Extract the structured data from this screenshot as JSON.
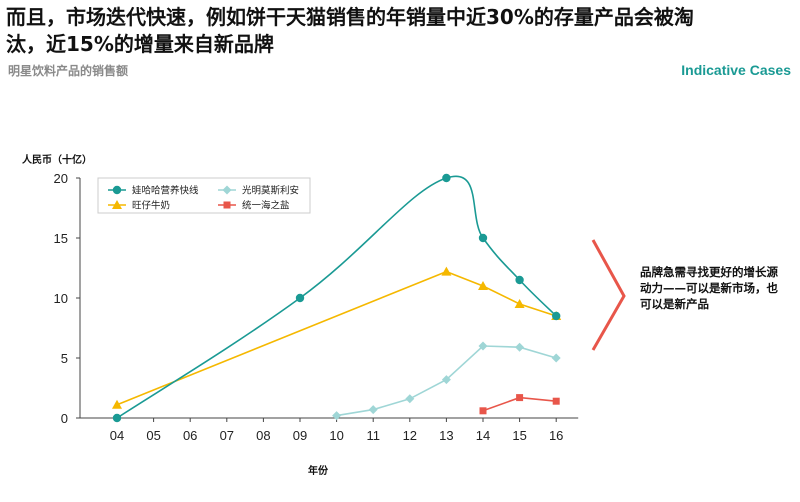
{
  "header": {
    "headline": "而且，市场迭代快速，例如饼干天猫销售的年销量中近30%的存量产品会被淘汰，近15%的增量来自新品牌",
    "subtitle": "明星饮料产品的销售额",
    "tag": "Indicative Cases"
  },
  "annotation": {
    "text": "品牌急需寻找更好的增长源动力——可以是新市场，也可以是新产品"
  },
  "chart_data": {
    "type": "line",
    "title": "明星饮料产品的销售额",
    "ylabel": "人民币（十亿）",
    "xlabel": "年份",
    "categories": [
      "04",
      "05",
      "06",
      "07",
      "08",
      "09",
      "10",
      "11",
      "12",
      "13",
      "14",
      "15",
      "16"
    ],
    "ylim": [
      0,
      20
    ],
    "yticks": [
      0,
      5,
      10,
      15,
      20
    ],
    "grid": false,
    "legend_position": "top-left",
    "series": [
      {
        "name": "娃哈哈营养快线",
        "color": "#1a9a94",
        "marker": "circle",
        "smooth": true,
        "points": [
          {
            "x": "04",
            "y": 0
          },
          {
            "x": "09",
            "y": 10
          },
          {
            "x": "13",
            "y": 20
          },
          {
            "x": "14",
            "y": 15
          },
          {
            "x": "15",
            "y": 11.5
          },
          {
            "x": "16",
            "y": 8.5
          }
        ]
      },
      {
        "name": "光明莫斯利安",
        "color": "#9fd6d6",
        "marker": "diamond",
        "smooth": false,
        "points": [
          {
            "x": "10",
            "y": 0.2
          },
          {
            "x": "11",
            "y": 0.7
          },
          {
            "x": "12",
            "y": 1.6
          },
          {
            "x": "13",
            "y": 3.2
          },
          {
            "x": "14",
            "y": 6.0
          },
          {
            "x": "15",
            "y": 5.9
          },
          {
            "x": "16",
            "y": 5.0
          }
        ]
      },
      {
        "name": "旺仔牛奶",
        "color": "#f5b800",
        "marker": "triangle",
        "smooth": false,
        "points": [
          {
            "x": "04",
            "y": 1.1
          },
          {
            "x": "13",
            "y": 12.2
          },
          {
            "x": "14",
            "y": 11.0
          },
          {
            "x": "15",
            "y": 9.5
          },
          {
            "x": "16",
            "y": 8.5
          }
        ]
      },
      {
        "name": "统一海之盐",
        "color": "#e8564a",
        "marker": "square",
        "smooth": false,
        "points": [
          {
            "x": "14",
            "y": 0.6
          },
          {
            "x": "15",
            "y": 1.7
          },
          {
            "x": "16",
            "y": 1.4
          }
        ]
      }
    ]
  }
}
